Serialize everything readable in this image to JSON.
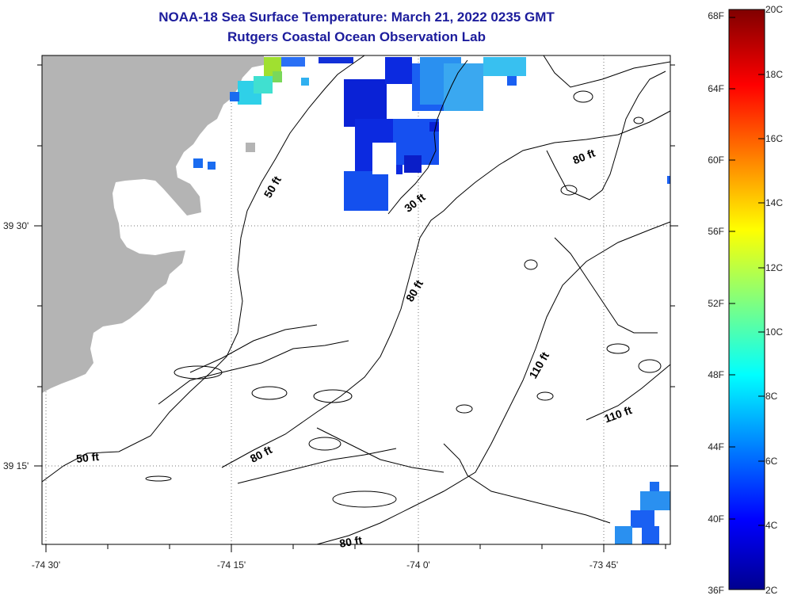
{
  "header": {
    "title_line1": "NOAA-18 Sea Surface Temperature:  March 21, 2022 0235 GMT",
    "title_line2": "Rutgers Coastal Ocean Observation Lab"
  },
  "axes": {
    "lon_labels": [
      "-74 30'",
      "-74 15'",
      "-74 0'",
      "-73 45'"
    ],
    "lat_labels": [
      "39 30'",
      "39 15'"
    ]
  },
  "contours": {
    "labels": [
      "50 ft",
      "30 ft",
      "80 ft",
      "80 ft",
      "110 ft",
      "110 ft",
      "50 ft",
      "80 ft",
      "80 ft"
    ]
  },
  "colorbar": {
    "fahrenheit_labels": [
      "68F",
      "64F",
      "60F",
      "56F",
      "52F",
      "48F",
      "44F",
      "40F",
      "36F"
    ],
    "celsius_labels": [
      "20C",
      "18C",
      "16C",
      "14C",
      "12C",
      "10C",
      "8C",
      "6C",
      "4C",
      "2C"
    ]
  },
  "colors": {
    "land": "#b4b4b4",
    "title": "#1c1c9c"
  }
}
